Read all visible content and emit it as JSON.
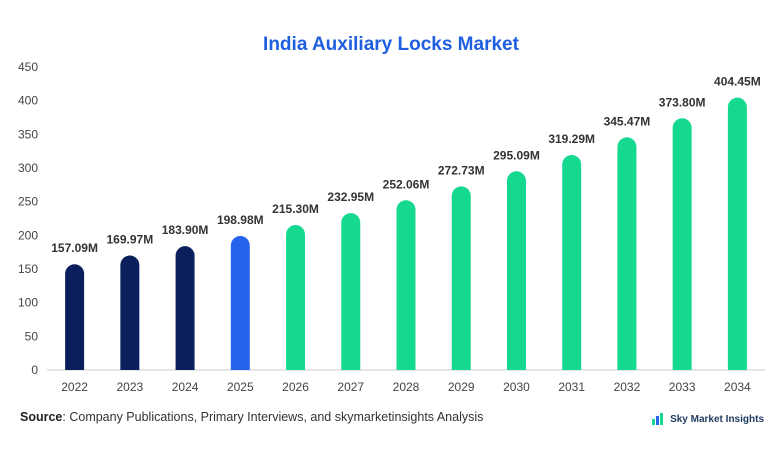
{
  "title": "India Auxiliary Locks Market",
  "source_label": "Source",
  "source_text": ": Company Publications, Primary Interviews, and skymarketinsights Analysis",
  "brand": "Sky Market Insights",
  "colors": {
    "title": "#1f5fe0",
    "historical": "#0b1f5c",
    "base_year": "#2563eb",
    "forecast": "#16d990"
  },
  "chart_data": {
    "type": "bar",
    "title": "India Auxiliary Locks Market",
    "categories": [
      "2022",
      "2023",
      "2024",
      "2025",
      "2026",
      "2027",
      "2028",
      "2029",
      "2030",
      "2031",
      "2032",
      "2033",
      "2034"
    ],
    "values": [
      157.09,
      169.97,
      183.9,
      198.98,
      215.3,
      232.95,
      252.06,
      272.73,
      295.09,
      319.29,
      345.47,
      373.8,
      404.45
    ],
    "data_labels": [
      "157.09M",
      "169.97M",
      "183.90M",
      "198.98M",
      "215.30M",
      "232.95M",
      "252.06M",
      "272.73M",
      "295.09M",
      "319.29M",
      "345.47M",
      "373.80M",
      "404.45M"
    ],
    "bar_groups": [
      "historical",
      "historical",
      "historical",
      "base_year",
      "forecast",
      "forecast",
      "forecast",
      "forecast",
      "forecast",
      "forecast",
      "forecast",
      "forecast",
      "forecast"
    ],
    "ylim": [
      0,
      450
    ],
    "yticks": [
      0,
      50,
      100,
      150,
      200,
      250,
      300,
      350,
      400,
      450
    ],
    "xlabel": "",
    "ylabel": "",
    "grid": false
  }
}
